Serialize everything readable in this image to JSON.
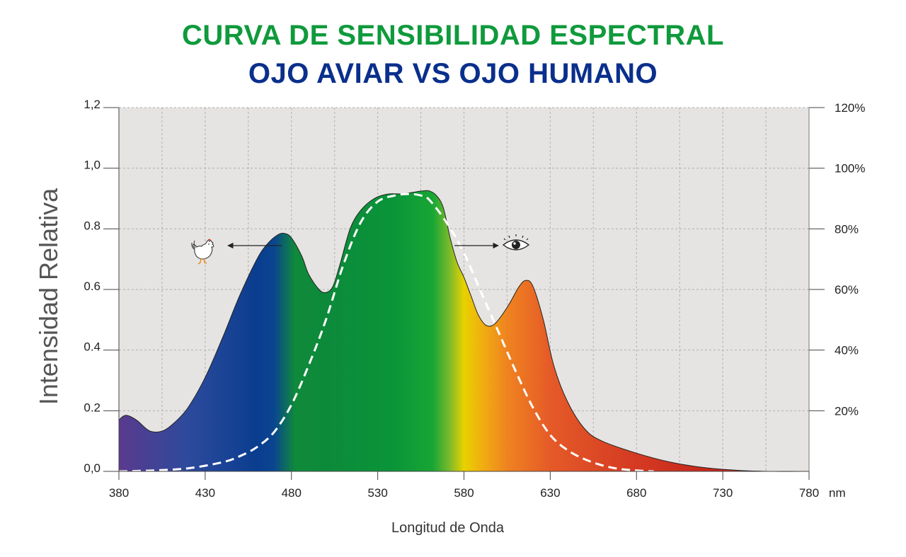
{
  "colors": {
    "title_line1": "#0f9a3c",
    "title_line2": "#0a2f8c",
    "plot_bg": "#e6e4e2",
    "grid": "#b0b0b0",
    "human_curve": "#ffffff",
    "outline": "#222222"
  },
  "chart_data": {
    "type": "area",
    "title": "CURVA DE SENSIBILIDAD ESPECTRAL",
    "subtitle": "OJO AVIAR VS OJO HUMANO",
    "xlabel": "Longitud de Onda",
    "xunit": "nm",
    "ylabel": "Intensidad Relativa",
    "xlim": [
      380,
      780
    ],
    "ylim": [
      0,
      1.2
    ],
    "x_ticks": [
      380,
      430,
      480,
      530,
      580,
      630,
      680,
      730,
      780
    ],
    "x_tick_labels": [
      "380",
      "430",
      "480",
      "530",
      "580",
      "630",
      "680",
      "730",
      "780"
    ],
    "y_ticks_left": [
      0,
      0.2,
      0.4,
      0.6,
      0.8,
      1.0,
      1.2
    ],
    "y_tick_labels_left": [
      "0,0",
      "0.2",
      "0.4",
      "0.6",
      "0.8",
      "1,0",
      "1,2"
    ],
    "y_ticks_right": [
      0.2,
      0.4,
      0.6,
      0.8,
      1.0,
      1.2
    ],
    "y_tick_labels_right": [
      "20%",
      "40%",
      "60%",
      "80%",
      "100%",
      "120%"
    ],
    "grid": true,
    "series": [
      {
        "style": "filled-spectrum",
        "x": [
          380,
          384,
          390,
          396,
          400,
          406,
          412,
          420,
          430,
          440,
          450,
          460,
          466,
          472,
          476,
          480,
          486,
          490,
          496,
          500,
          504,
          508,
          514,
          520,
          528,
          536,
          544,
          550,
          556,
          560,
          564,
          568,
          572,
          576,
          580,
          584,
          588,
          592,
          596,
          600,
          606,
          612,
          616,
          620,
          626,
          632,
          640,
          650,
          660,
          680,
          700,
          720,
          740,
          760,
          780
        ],
        "values": [
          0.17,
          0.185,
          0.17,
          0.14,
          0.13,
          0.135,
          0.16,
          0.21,
          0.31,
          0.44,
          0.58,
          0.7,
          0.75,
          0.78,
          0.785,
          0.77,
          0.71,
          0.65,
          0.6,
          0.59,
          0.61,
          0.68,
          0.8,
          0.86,
          0.9,
          0.915,
          0.915,
          0.92,
          0.925,
          0.925,
          0.91,
          0.87,
          0.77,
          0.69,
          0.64,
          0.58,
          0.52,
          0.485,
          0.48,
          0.5,
          0.55,
          0.61,
          0.63,
          0.61,
          0.5,
          0.35,
          0.23,
          0.14,
          0.1,
          0.06,
          0.03,
          0.012,
          0.003,
          0.0,
          0.0
        ]
      },
      {
        "style": "dashed-white",
        "x": [
          380,
          400,
          420,
          440,
          450,
          460,
          470,
          480,
          490,
          500,
          510,
          520,
          530,
          540,
          548,
          555,
          560,
          570,
          580,
          590,
          600,
          610,
          620,
          630,
          640,
          650,
          660,
          670,
          680,
          690
        ],
        "values": [
          0.0,
          0.003,
          0.01,
          0.03,
          0.05,
          0.08,
          0.13,
          0.22,
          0.35,
          0.5,
          0.68,
          0.82,
          0.89,
          0.91,
          0.915,
          0.91,
          0.895,
          0.82,
          0.72,
          0.59,
          0.46,
          0.33,
          0.21,
          0.12,
          0.07,
          0.04,
          0.02,
          0.008,
          0.003,
          0.0
        ]
      }
    ],
    "annotations": [
      {
        "icon": "rooster-icon",
        "direction": "left"
      },
      {
        "icon": "eye-icon",
        "direction": "right"
      }
    ],
    "spectrum_gradient": [
      {
        "nm": 380,
        "color": "#5a3a8e"
      },
      {
        "nm": 420,
        "color": "#2d4a9c"
      },
      {
        "nm": 460,
        "color": "#0a3d8f"
      },
      {
        "nm": 470,
        "color": "#0a4590"
      },
      {
        "nm": 482,
        "color": "#0f8a3a"
      },
      {
        "nm": 500,
        "color": "#0c8a3a"
      },
      {
        "nm": 540,
        "color": "#0a9539"
      },
      {
        "nm": 562,
        "color": "#18a635"
      },
      {
        "nm": 572,
        "color": "#7fbb2a"
      },
      {
        "nm": 580,
        "color": "#e8d200"
      },
      {
        "nm": 590,
        "color": "#f0b010"
      },
      {
        "nm": 605,
        "color": "#ef8320"
      },
      {
        "nm": 630,
        "color": "#e55a28"
      },
      {
        "nm": 680,
        "color": "#d43a22"
      },
      {
        "nm": 720,
        "color": "#c8281c"
      },
      {
        "nm": 780,
        "color": "#c02218"
      }
    ]
  }
}
